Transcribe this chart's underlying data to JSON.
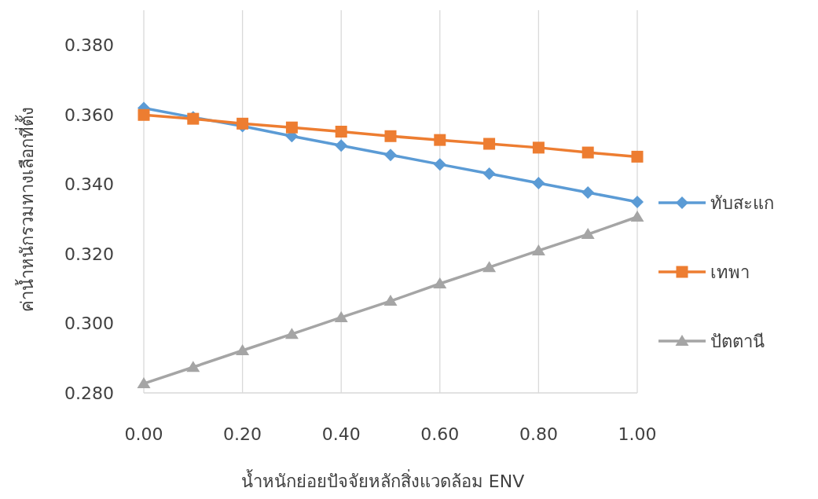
{
  "chart_data": {
    "type": "line",
    "xlabel": "น้ำหนักย่อยปัจจัยหลักสิ่งแวดล้อม ENV",
    "ylabel": "ค่าน้ำหนักรวมทางเลือกที่ตั้ง",
    "x": [
      0,
      0.1,
      0.2,
      0.3,
      0.4,
      0.5,
      0.6,
      0.7,
      0.8,
      0.9,
      1.0
    ],
    "series": [
      {
        "name": "ทับสะแก",
        "color": "#5b9bd5",
        "marker": "diamond",
        "values": [
          0.3619,
          0.3592,
          0.3567,
          0.3538,
          0.3511,
          0.3484,
          0.3457,
          0.343,
          0.3403,
          0.3376,
          0.3349
        ]
      },
      {
        "name": "เทพา",
        "color": "#ed7d31",
        "marker": "square",
        "values": [
          0.3599,
          0.3588,
          0.3574,
          0.3563,
          0.3551,
          0.3538,
          0.3527,
          0.3516,
          0.3505,
          0.3491,
          0.3479
        ]
      },
      {
        "name": "ปัตตานี",
        "color": "#a5a5a5",
        "marker": "triangle",
        "values": [
          0.2827,
          0.2874,
          0.2922,
          0.2969,
          0.3017,
          0.3064,
          0.3114,
          0.3161,
          0.3209,
          0.3256,
          0.3306
        ]
      }
    ],
    "xlim": [
      0,
      1
    ],
    "ylim": [
      0.28,
      0.39
    ],
    "xticks": [
      {
        "value": 0,
        "label": "0.00"
      },
      {
        "value": 0.2,
        "label": "0.20"
      },
      {
        "value": 0.4,
        "label": "0.40"
      },
      {
        "value": 0.6,
        "label": "0.60"
      },
      {
        "value": 0.8,
        "label": "0.80"
      },
      {
        "value": 1.0,
        "label": "1.00"
      }
    ],
    "yticks": [
      {
        "value": 0.28,
        "label": "0.280"
      },
      {
        "value": 0.3,
        "label": "0.300"
      },
      {
        "value": 0.32,
        "label": "0.320"
      },
      {
        "value": 0.34,
        "label": "0.340"
      },
      {
        "value": 0.36,
        "label": "0.360"
      },
      {
        "value": 0.38,
        "label": "0.380"
      }
    ],
    "grid": "x",
    "legend": "right",
    "line_style": "solid"
  }
}
